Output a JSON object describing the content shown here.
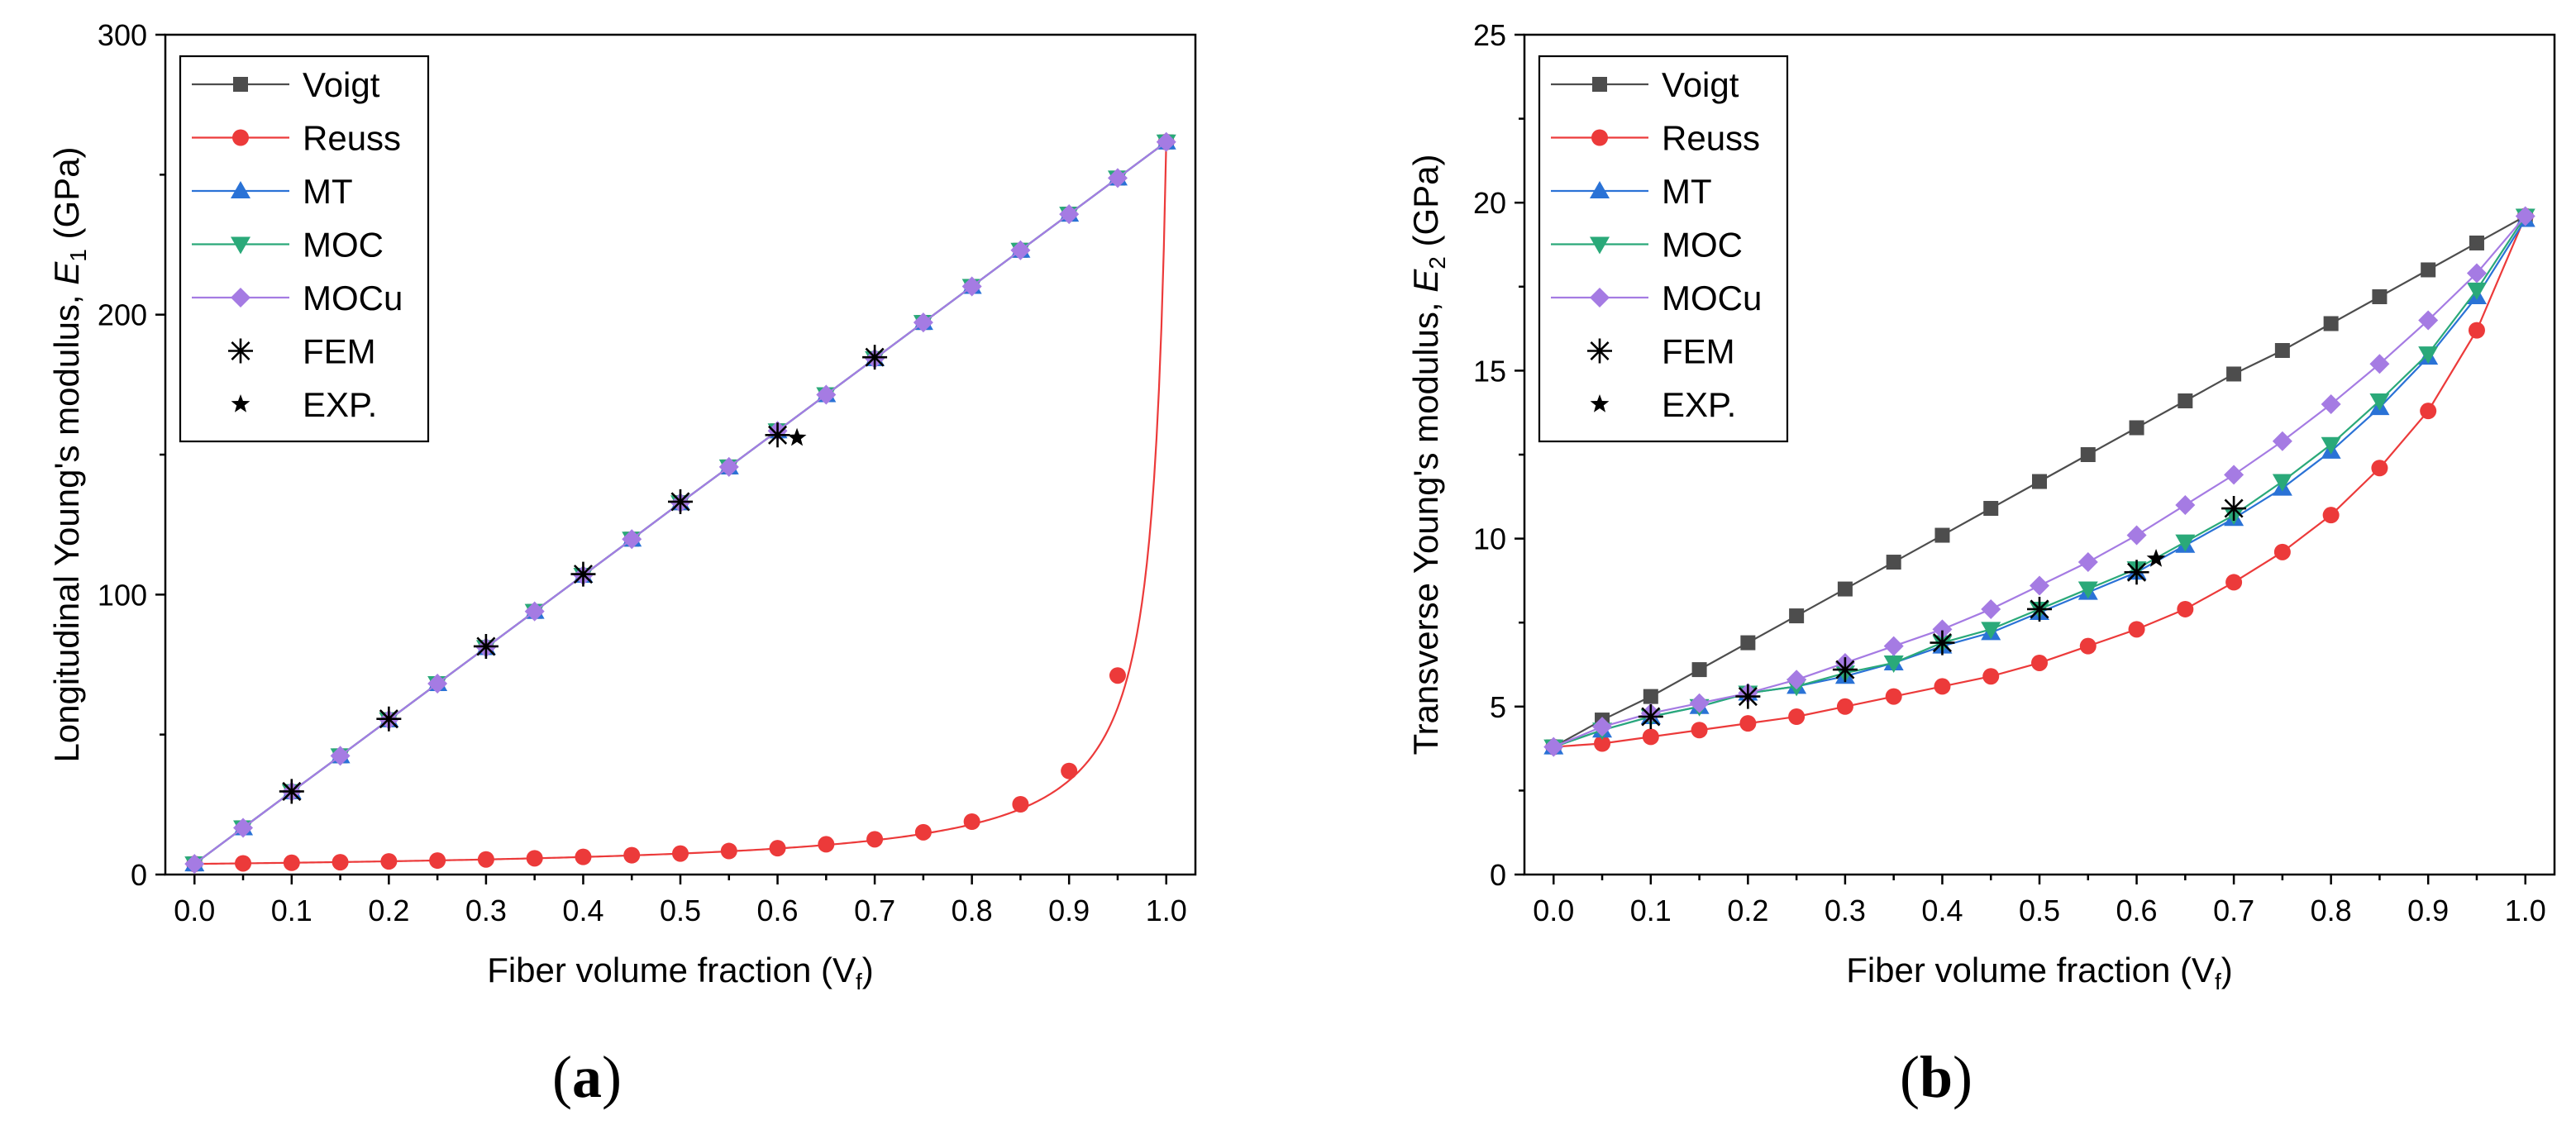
{
  "colors": {
    "Voigt": "#4d4d4d",
    "Reuss": "#ec3a3a",
    "MT": "#2a72d6",
    "MOC": "#2aa979",
    "MOCu": "#a57be3",
    "FEM": "#000000",
    "EXP.": "#000000"
  },
  "panels": [
    {
      "open": "(",
      "letter": "a",
      "close": ")"
    },
    {
      "open": "(",
      "letter": "b",
      "close": ")"
    }
  ],
  "chart_data": [
    {
      "type": "line",
      "panel": "a",
      "xlabel": "Fiber volume fraction (V",
      "xlabel_sub": "f",
      "xlabel_end": ")",
      "ylabel": "Longitudinal Young's modulus, ",
      "ylabel_sym": "E",
      "ylabel_sub": "1",
      "ylabel_unit": " (GPa)",
      "xlim": [
        -0.03,
        1.03
      ],
      "ylim": [
        0,
        300
      ],
      "xticks": [
        "0.0",
        "0.1",
        "0.2",
        "0.3",
        "0.4",
        "0.5",
        "0.6",
        "0.7",
        "0.8",
        "0.9",
        "1.0"
      ],
      "yticks": [
        "0",
        "100",
        "200",
        "300"
      ],
      "x": [
        0,
        0.05,
        0.1,
        0.15,
        0.2,
        0.25,
        0.3,
        0.35,
        0.4,
        0.45,
        0.5,
        0.55,
        0.6,
        0.65,
        0.7,
        0.75,
        0.8,
        0.85,
        0.9,
        0.95,
        1.0
      ],
      "series": [
        {
          "name": "Voigt",
          "marker": "square",
          "values": [
            3.8,
            16.7,
            29.6,
            42.4,
            55.3,
            68.2,
            81.1,
            94.0,
            106.9,
            119.8,
            132.8,
            145.6,
            158.5,
            171.4,
            184.3,
            197.2,
            210.1,
            223.0,
            235.9,
            248.8,
            261.7
          ]
        },
        {
          "name": "Reuss",
          "marker": "circle",
          "curve": "reuss",
          "Em": 3.8,
          "Ef": 261.7,
          "values": [
            3.8,
            4.0,
            4.2,
            4.4,
            4.7,
            5.0,
            5.4,
            5.8,
            6.3,
            6.9,
            7.5,
            8.4,
            9.4,
            10.8,
            12.6,
            15.1,
            18.9,
            25.1,
            37.0,
            71.1,
            261.7
          ]
        },
        {
          "name": "MT",
          "marker": "triangle-up",
          "values": [
            3.8,
            16.7,
            29.6,
            42.4,
            55.3,
            68.2,
            81.1,
            94.0,
            106.9,
            119.8,
            132.8,
            145.6,
            158.5,
            171.4,
            184.3,
            197.2,
            210.1,
            223.0,
            235.9,
            248.8,
            261.7
          ]
        },
        {
          "name": "MOC",
          "marker": "triangle-down",
          "values": [
            3.8,
            16.7,
            29.6,
            42.4,
            55.3,
            68.2,
            81.1,
            94.0,
            106.9,
            119.8,
            132.8,
            145.6,
            158.5,
            171.4,
            184.3,
            197.2,
            210.1,
            223.0,
            235.9,
            248.8,
            261.7
          ]
        },
        {
          "name": "MOCu",
          "marker": "diamond",
          "values": [
            3.8,
            16.7,
            29.6,
            42.4,
            55.3,
            68.2,
            81.1,
            94.0,
            106.9,
            119.8,
            132.8,
            145.6,
            158.5,
            171.4,
            184.3,
            197.2,
            210.1,
            223.0,
            235.9,
            248.8,
            261.7
          ]
        },
        {
          "name": "FEM",
          "marker": "asterisk",
          "x": [
            0.1,
            0.2,
            0.3,
            0.4,
            0.5,
            0.6,
            0.7
          ],
          "values": [
            29.7,
            55.6,
            81.5,
            107.3,
            133.2,
            157.0,
            184.8
          ]
        },
        {
          "name": "EXP.",
          "marker": "star",
          "x": [
            0.62
          ],
          "values": [
            156.0
          ]
        }
      ]
    },
    {
      "type": "line",
      "panel": "b",
      "xlabel": "Fiber volume fraction (V",
      "xlabel_sub": "f",
      "xlabel_end": ")",
      "ylabel": "Transverse Young's modulus, ",
      "ylabel_sym": "E",
      "ylabel_sub": "2",
      "ylabel_unit": " (GPa)",
      "xlim": [
        -0.03,
        1.03
      ],
      "ylim": [
        0,
        25
      ],
      "xticks": [
        "0.0",
        "0.1",
        "0.2",
        "0.3",
        "0.4",
        "0.5",
        "0.6",
        "0.7",
        "0.8",
        "0.9",
        "1.0"
      ],
      "yticks": [
        "0",
        "5",
        "10",
        "15",
        "20",
        "25"
      ],
      "x": [
        0,
        0.05,
        0.1,
        0.15,
        0.2,
        0.25,
        0.3,
        0.35,
        0.4,
        0.45,
        0.5,
        0.55,
        0.6,
        0.65,
        0.7,
        0.75,
        0.8,
        0.85,
        0.9,
        0.95,
        1.0
      ],
      "series": [
        {
          "name": "Voigt",
          "marker": "square",
          "values": [
            3.8,
            4.6,
            5.3,
            6.1,
            6.9,
            7.7,
            8.5,
            9.3,
            10.1,
            10.9,
            11.7,
            12.5,
            13.3,
            14.1,
            14.9,
            15.6,
            16.4,
            17.2,
            18.0,
            18.8,
            19.6
          ]
        },
        {
          "name": "Reuss",
          "marker": "circle",
          "values": [
            3.8,
            3.9,
            4.1,
            4.3,
            4.5,
            4.7,
            5.0,
            5.3,
            5.6,
            5.9,
            6.3,
            6.8,
            7.3,
            7.9,
            8.7,
            9.6,
            10.7,
            12.1,
            13.8,
            16.2,
            19.6
          ]
        },
        {
          "name": "MT",
          "marker": "triangle-up",
          "values": [
            3.8,
            4.3,
            4.7,
            5.0,
            5.4,
            5.6,
            5.9,
            6.3,
            6.8,
            7.2,
            7.8,
            8.4,
            9.0,
            9.8,
            10.6,
            11.5,
            12.6,
            13.9,
            15.4,
            17.2,
            19.5
          ]
        },
        {
          "name": "MOC",
          "marker": "triangle-down",
          "values": [
            3.8,
            4.3,
            4.7,
            5.0,
            5.4,
            5.6,
            6.0,
            6.3,
            6.9,
            7.3,
            7.9,
            8.5,
            9.1,
            9.9,
            10.7,
            11.7,
            12.8,
            14.1,
            15.5,
            17.4,
            19.6
          ]
        },
        {
          "name": "MOCu",
          "marker": "diamond",
          "values": [
            3.8,
            4.4,
            4.8,
            5.1,
            5.4,
            5.8,
            6.3,
            6.8,
            7.3,
            7.9,
            8.6,
            9.3,
            10.1,
            11.0,
            11.9,
            12.9,
            14.0,
            15.2,
            16.5,
            17.9,
            19.6
          ]
        },
        {
          "name": "FEM",
          "marker": "asterisk",
          "x": [
            0.1,
            0.2,
            0.3,
            0.4,
            0.5,
            0.6,
            0.7
          ],
          "values": [
            4.7,
            5.3,
            6.1,
            6.9,
            7.9,
            9.0,
            10.9
          ]
        },
        {
          "name": "EXP.",
          "marker": "star",
          "x": [
            0.62
          ],
          "values": [
            9.4
          ]
        }
      ]
    }
  ]
}
